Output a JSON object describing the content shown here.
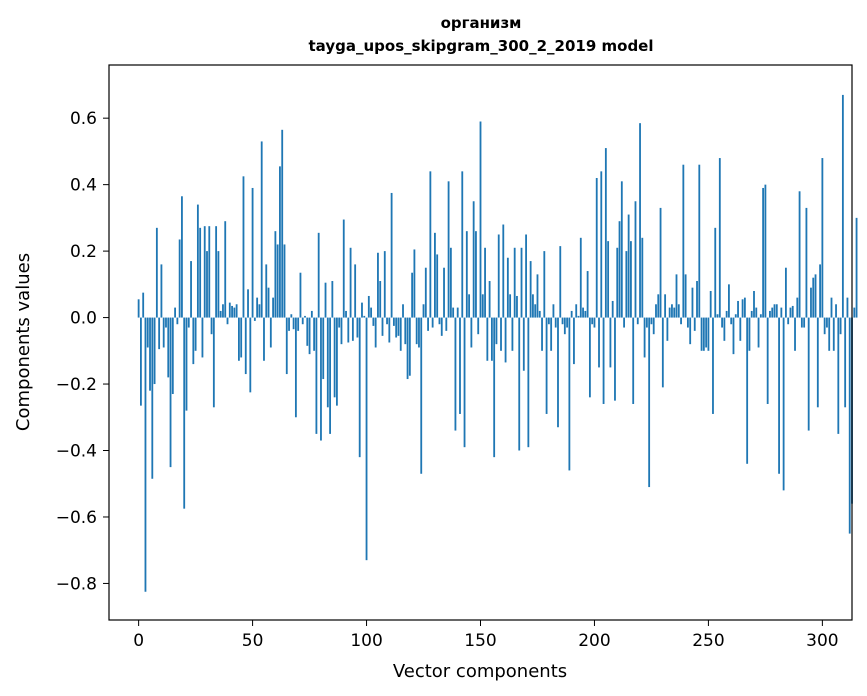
{
  "chart_data": {
    "type": "bar",
    "title_line1": "организм",
    "title_line2": "tayga_upos_skipgram_300_2_2019 model",
    "xlabel": "Vector components",
    "ylabel": "Components values",
    "xlim": [
      -13,
      313
    ],
    "ylim": [
      -0.91,
      0.76
    ],
    "xticks": [
      0,
      50,
      100,
      150,
      200,
      250,
      300
    ],
    "xtick_labels": [
      "0",
      "50",
      "100",
      "150",
      "200",
      "250",
      "300"
    ],
    "yticks": [
      -0.8,
      -0.6,
      -0.4,
      -0.2,
      0.0,
      0.2,
      0.4,
      0.6
    ],
    "ytick_labels": [
      "−0.8",
      "−0.6",
      "−0.4",
      "−0.2",
      "0.0",
      "0.2",
      "0.4",
      "0.6"
    ],
    "bar_color": "#1f77b4",
    "values": [
      0.055,
      -0.265,
      0.075,
      -0.825,
      -0.09,
      -0.22,
      -0.485,
      -0.2,
      0.27,
      -0.095,
      0.16,
      -0.09,
      -0.03,
      -0.18,
      -0.45,
      -0.23,
      0.03,
      -0.02,
      0.235,
      0.365,
      -0.575,
      -0.28,
      -0.03,
      0.17,
      -0.14,
      -0.1,
      0.34,
      0.27,
      -0.12,
      0.275,
      0.2,
      0.275,
      -0.05,
      -0.27,
      0.275,
      0.2,
      0.02,
      0.04,
      0.29,
      -0.02,
      0.045,
      0.035,
      0.03,
      0.04,
      -0.13,
      -0.12,
      0.425,
      -0.17,
      0.085,
      -0.225,
      0.39,
      -0.01,
      0.06,
      0.04,
      0.53,
      -0.13,
      0.16,
      0.09,
      -0.09,
      0.06,
      0.26,
      0.22,
      0.455,
      0.565,
      0.22,
      -0.17,
      -0.04,
      0.01,
      -0.035,
      -0.3,
      -0.04,
      0.135,
      -0.02,
      0.005,
      -0.085,
      -0.11,
      0.02,
      -0.1,
      -0.35,
      0.255,
      -0.37,
      -0.185,
      0.105,
      -0.27,
      -0.35,
      0.11,
      -0.24,
      -0.265,
      -0.03,
      -0.08,
      0.295,
      0.02,
      -0.075,
      0.21,
      -0.07,
      0.16,
      -0.06,
      -0.42,
      0.045,
      0.005,
      -0.73,
      0.065,
      0.03,
      -0.025,
      -0.09,
      0.195,
      0.11,
      -0.055,
      0.2,
      -0.02,
      -0.075,
      0.375,
      -0.025,
      -0.06,
      -0.055,
      -0.1,
      0.04,
      -0.08,
      -0.185,
      -0.175,
      0.135,
      0.205,
      -0.08,
      -0.09,
      -0.47,
      0.04,
      0.15,
      -0.04,
      0.44,
      -0.03,
      0.255,
      0.19,
      -0.02,
      -0.055,
      0.15,
      -0.04,
      0.41,
      0.21,
      0.03,
      -0.34,
      0.03,
      -0.29,
      0.44,
      -0.39,
      0.26,
      0.07,
      -0.09,
      0.35,
      0.26,
      -0.05,
      0.59,
      0.07,
      0.21,
      -0.13,
      0.11,
      -0.13,
      -0.42,
      -0.08,
      0.25,
      -0.1,
      0.28,
      -0.135,
      0.18,
      0.07,
      -0.1,
      0.21,
      0.065,
      -0.4,
      0.21,
      -0.16,
      0.25,
      -0.39,
      0.17,
      0.07,
      0.04,
      0.13,
      0.02,
      -0.1,
      0.2,
      -0.29,
      -0.02,
      -0.1,
      0.04,
      -0.03,
      -0.33,
      0.215,
      -0.02,
      -0.05,
      -0.03,
      -0.46,
      0.02,
      -0.14,
      0.04,
      0.005,
      0.24,
      0.03,
      0.02,
      0.14,
      -0.24,
      -0.02,
      -0.03,
      0.42,
      -0.15,
      0.44,
      -0.26,
      0.51,
      0.23,
      -0.15,
      0.05,
      -0.25,
      0.21,
      0.29,
      0.41,
      -0.03,
      0.2,
      0.31,
      0.23,
      -0.26,
      0.35,
      -0.02,
      0.585,
      0.24,
      -0.12,
      -0.03,
      -0.51,
      -0.02,
      -0.05,
      0.04,
      0.07,
      0.33,
      -0.21,
      0.07,
      -0.07,
      0.03,
      0.04,
      0.03,
      0.13,
      0.04,
      -0.02,
      0.46,
      0.13,
      -0.03,
      -0.08,
      0.09,
      -0.04,
      0.11,
      0.46,
      -0.1,
      -0.1,
      -0.09,
      -0.1,
      0.08,
      -0.29,
      0.27,
      0.01,
      0.48,
      -0.03,
      -0.07,
      0.02,
      0.1,
      -0.02,
      -0.11,
      0.01,
      0.05,
      -0.07,
      0.055,
      0.06,
      -0.44,
      -0.1,
      0.02,
      0.08,
      0.03,
      -0.09,
      0.01,
      0.39,
      0.4,
      -0.26,
      0.02,
      0.03,
      0.04,
      0.04,
      -0.47,
      0.03,
      -0.52,
      0.15,
      -0.02,
      0.03,
      0.035,
      -0.1,
      0.06,
      0.38,
      -0.03,
      -0.03,
      0.33,
      -0.34,
      0.09,
      0.12,
      0.13,
      -0.27,
      0.16,
      0.48,
      -0.05,
      -0.03,
      -0.1,
      0.06,
      -0.1,
      0.04,
      -0.35,
      -0.05,
      0.67,
      -0.27,
      0.06,
      -0.65,
      -0.56,
      0.03,
      0.3
    ]
  }
}
